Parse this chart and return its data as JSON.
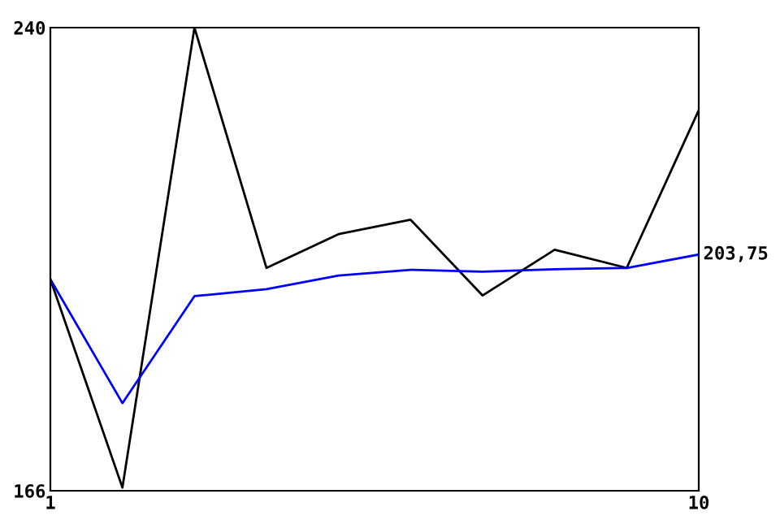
{
  "chart_data": {
    "type": "line",
    "x": [
      1,
      2,
      3,
      4,
      5,
      6,
      7,
      8,
      9,
      10
    ],
    "series": [
      {
        "color": "#000000",
        "values": [
          199.8,
          166.5,
          240,
          201.6,
          207,
          209.3,
          197.2,
          204.5,
          201.6,
          226.8
        ]
      },
      {
        "color": "#0000ff",
        "values": [
          199.8,
          180,
          197.1,
          198.2,
          200.4,
          201.3,
          201,
          201.4,
          201.6,
          203.75
        ]
      }
    ],
    "annotations": [
      {
        "text": "203,75",
        "x": 10,
        "y": 203.75
      }
    ],
    "xlim": [
      1,
      10
    ],
    "ylim": [
      166,
      240
    ],
    "xticks": [
      1,
      10
    ],
    "yticks": [
      166,
      240
    ],
    "grid": false,
    "legend": false,
    "marker": "none",
    "line_style": "solid"
  }
}
